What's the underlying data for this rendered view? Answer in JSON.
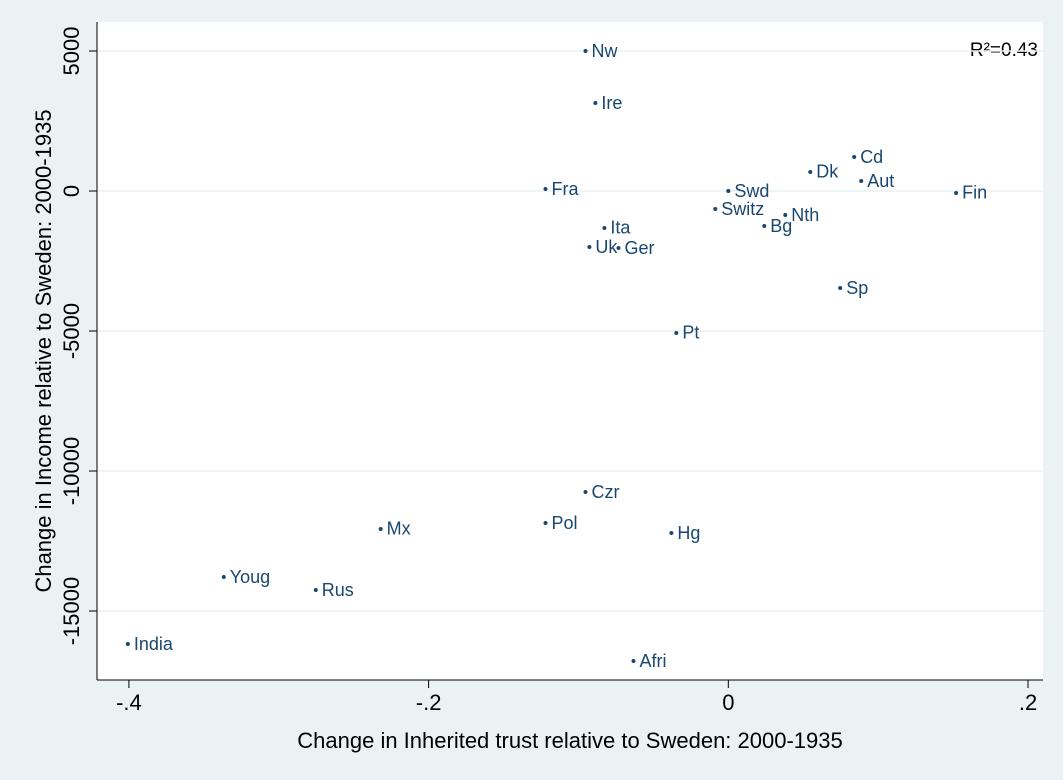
{
  "chart_data": {
    "type": "scatter",
    "xlabel": "Change in Inherited trust relative to Sweden: 2000-1935",
    "ylabel": "Change in Income relative to Sweden: 2000-1935",
    "annotation": "R²=0.43",
    "color": "#1a476f",
    "grid": true,
    "xlim": [
      -0.4213,
      0.21
    ],
    "ylim": [
      -17464,
      6036
    ],
    "xticks": [
      {
        "value": -0.4,
        "label": "-.4"
      },
      {
        "value": -0.2,
        "label": "-.2"
      },
      0,
      {
        "value": 0.2,
        "label": ".2"
      }
    ],
    "yticks": [
      -15000,
      -10000,
      -5000,
      0,
      5000
    ],
    "labels": [
      "Nw",
      "Ire",
      "Fra",
      "Swd",
      "Cd",
      "Dk",
      "Aut",
      "Fin",
      "Switz",
      "Nth",
      "Bg",
      "Ita",
      "Uk",
      "Ger",
      "Sp",
      "Pt",
      "Czr",
      "Pol",
      "Hg",
      "Mx",
      "Youg",
      "Rus",
      "India",
      "Afri"
    ],
    "x": [
      -0.0953,
      -0.0887,
      -0.122,
      0,
      0.084,
      0.0547,
      0.0887,
      0.152,
      -0.0087,
      0.038,
      0.024,
      -0.0827,
      -0.0927,
      -0.0733,
      0.0747,
      -0.0347,
      -0.0953,
      -0.122,
      -0.038,
      -0.232,
      -0.3367,
      -0.2753,
      -0.4007,
      -0.0633
    ],
    "values": [
      5000,
      3143,
      71,
      0,
      1214,
      679,
      357,
      -71,
      -643,
      -857,
      -1250,
      -1321,
      -2000,
      -2036,
      -3464,
      -5071,
      -10750,
      -11857,
      -12214,
      -12071,
      -13786,
      -14250,
      -16179,
      -16786
    ]
  }
}
